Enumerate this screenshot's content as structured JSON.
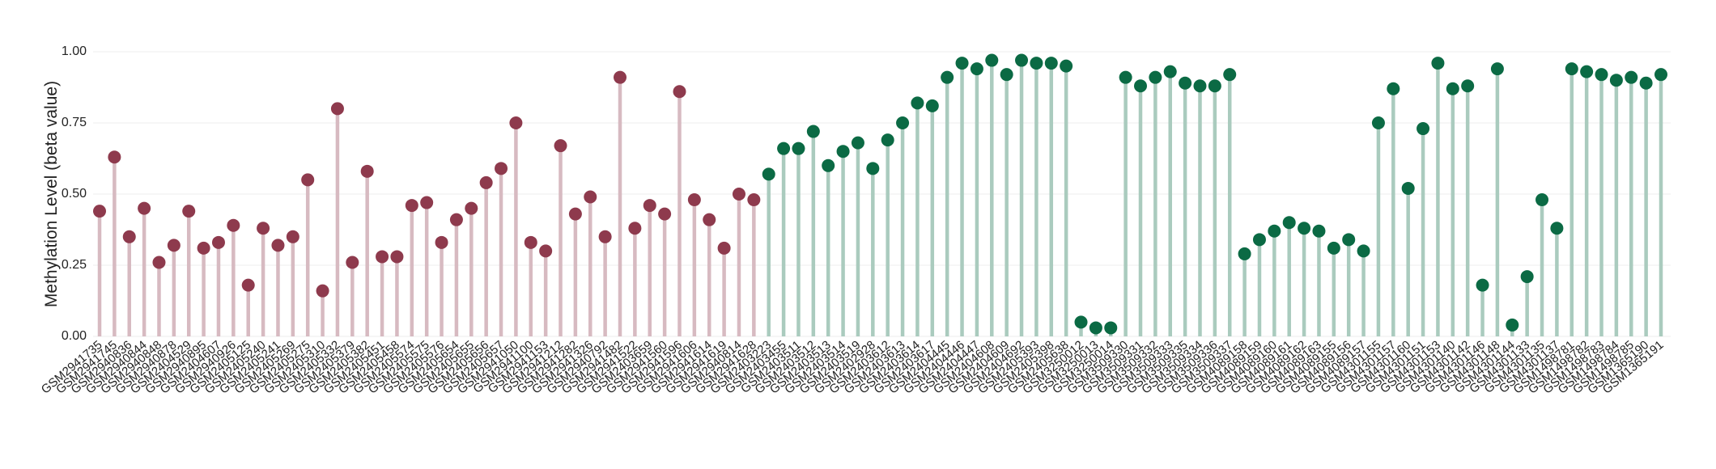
{
  "chart_data": {
    "type": "lollipop",
    "y_label": "Methylation Level (beta value)",
    "ylim": [
      0,
      1
    ],
    "yticks": [
      {
        "value": 0,
        "label": "0.00"
      },
      {
        "value": 0.25,
        "label": "0.25"
      },
      {
        "value": 0.5,
        "label": "0.50"
      },
      {
        "value": 0.75,
        "label": "0.75"
      },
      {
        "value": 1,
        "label": "1.00"
      }
    ],
    "grid": true,
    "categories": [
      "GSM2941735",
      "GSM2941745",
      "GSM2940836",
      "GSM2940844",
      "GSM2940848",
      "GSM2940878",
      "GSM2404529",
      "GSM2940895",
      "GSM2404607",
      "GSM2940926",
      "GSM2405125",
      "GSM2405240",
      "GSM2405241",
      "GSM2405269",
      "GSM2405275",
      "GSM2405310",
      "GSM2405332",
      "GSM2405379",
      "GSM2405382",
      "GSM2405451",
      "GSM2405458",
      "GSM2405574",
      "GSM2405575",
      "GSM2405576",
      "GSM2405654",
      "GSM2405655",
      "GSM2405656",
      "GSM2405657",
      "GSM2941050",
      "GSM2941100",
      "GSM2941153",
      "GSM2941212",
      "GSM2941282",
      "GSM2941326",
      "GSM2940792",
      "GSM2941482",
      "GSM2941522",
      "GSM2403659",
      "GSM2941560",
      "GSM2941596",
      "GSM2941606",
      "GSM2941614",
      "GSM2941619",
      "GSM2940814",
      "GSM2941628",
      "GSM2403223",
      "GSM2403455",
      "GSM2403511",
      "GSM2403512",
      "GSM2403513",
      "GSM2403514",
      "GSM2403519",
      "GSM2402928",
      "GSM2403612",
      "GSM2403613",
      "GSM2403614",
      "GSM2403617",
      "GSM2404445",
      "GSM2404446",
      "GSM2404447",
      "GSM2404608",
      "GSM2404609",
      "GSM2404692",
      "GSM2405393",
      "GSM2405398",
      "GSM2405638",
      "GSM3250012",
      "GSM3250013",
      "GSM3250014",
      "GSM3509330",
      "GSM3509331",
      "GSM3509332",
      "GSM3509333",
      "GSM3509335",
      "GSM3509334",
      "GSM3509336",
      "GSM3509337",
      "GSM4089158",
      "GSM4089159",
      "GSM4089160",
      "GSM4089161",
      "GSM4089162",
      "GSM4089163",
      "GSM4089155",
      "GSM4089156",
      "GSM4089157",
      "GSM4301155",
      "GSM4301157",
      "GSM4301160",
      "GSM4301151",
      "GSM4301153",
      "GSM4301140",
      "GSM4301142",
      "GSM4301146",
      "GSM4301148",
      "GSM4301144",
      "GSM4301133",
      "GSM4301135",
      "GSM4301137",
      "GSM1498781",
      "GSM1498782",
      "GSM1498783",
      "GSM1498784",
      "GSM1498785",
      "GSM1365190",
      "GSM1365191"
    ],
    "values": [
      0.44,
      0.63,
      0.35,
      0.45,
      0.26,
      0.32,
      0.44,
      0.31,
      0.33,
      0.39,
      0.18,
      0.38,
      0.32,
      0.35,
      0.55,
      0.16,
      0.8,
      0.26,
      0.58,
      0.28,
      0.28,
      0.46,
      0.47,
      0.33,
      0.41,
      0.45,
      0.54,
      0.59,
      0.75,
      0.33,
      0.3,
      0.67,
      0.43,
      0.49,
      0.35,
      0.91,
      0.38,
      0.46,
      0.43,
      0.86,
      0.48,
      0.41,
      0.31,
      0.5,
      0.48,
      0.57,
      0.66,
      0.66,
      0.72,
      0.6,
      0.65,
      0.68,
      0.59,
      0.69,
      0.75,
      0.82,
      0.81,
      0.91,
      0.96,
      0.94,
      0.97,
      0.92,
      0.97,
      0.96,
      0.96,
      0.95,
      0.05,
      0.03,
      0.03,
      0.91,
      0.88,
      0.91,
      0.93,
      0.89,
      0.88,
      0.88,
      0.92,
      0.29,
      0.34,
      0.37,
      0.4,
      0.38,
      0.37,
      0.31,
      0.34,
      0.3,
      0.75,
      0.87,
      0.52,
      0.73,
      0.96,
      0.87,
      0.88,
      0.18,
      0.94,
      0.04,
      0.21,
      0.48,
      0.38,
      0.94,
      0.93,
      0.92,
      0.9,
      0.91,
      0.89,
      0.92
    ],
    "point_colors": [
      "#8e3a4d",
      "#8e3a4d",
      "#8e3a4d",
      "#8e3a4d",
      "#8e3a4d",
      "#8e3a4d",
      "#8e3a4d",
      "#8e3a4d",
      "#8e3a4d",
      "#8e3a4d",
      "#8e3a4d",
      "#8e3a4d",
      "#8e3a4d",
      "#8e3a4d",
      "#8e3a4d",
      "#8e3a4d",
      "#8e3a4d",
      "#8e3a4d",
      "#8e3a4d",
      "#8e3a4d",
      "#8e3a4d",
      "#8e3a4d",
      "#8e3a4d",
      "#8e3a4d",
      "#8e3a4d",
      "#8e3a4d",
      "#8e3a4d",
      "#8e3a4d",
      "#8e3a4d",
      "#8e3a4d",
      "#8e3a4d",
      "#8e3a4d",
      "#8e3a4d",
      "#8e3a4d",
      "#8e3a4d",
      "#8e3a4d",
      "#8e3a4d",
      "#8e3a4d",
      "#8e3a4d",
      "#8e3a4d",
      "#8e3a4d",
      "#8e3a4d",
      "#8e3a4d",
      "#8e3a4d",
      "#8e3a4d",
      "#0b6a44",
      "#0b6a44",
      "#0b6a44",
      "#0b6a44",
      "#0b6a44",
      "#0b6a44",
      "#0b6a44",
      "#0b6a44",
      "#0b6a44",
      "#0b6a44",
      "#0b6a44",
      "#0b6a44",
      "#0b6a44",
      "#0b6a44",
      "#0b6a44",
      "#0b6a44",
      "#0b6a44",
      "#0b6a44",
      "#0b6a44",
      "#0b6a44",
      "#0b6a44",
      "#0b6a44",
      "#0b6a44",
      "#0b6a44",
      "#0b6a44",
      "#0b6a44",
      "#0b6a44",
      "#0b6a44",
      "#0b6a44",
      "#0b6a44",
      "#0b6a44",
      "#0b6a44",
      "#0b6a44",
      "#0b6a44",
      "#0b6a44",
      "#0b6a44",
      "#0b6a44",
      "#0b6a44",
      "#0b6a44",
      "#0b6a44",
      "#0b6a44",
      "#0b6a44",
      "#0b6a44",
      "#0b6a44",
      "#0b6a44",
      "#0b6a44",
      "#0b6a44",
      "#0b6a44",
      "#0b6a44",
      "#0b6a44",
      "#0b6a44",
      "#0b6a44",
      "#0b6a44",
      "#0b6a44",
      "#0b6a44",
      "#0b6a44",
      "#0b6a44",
      "#0b6a44",
      "#0b6a44",
      "#0b6a44",
      "#0b6a44"
    ]
  }
}
